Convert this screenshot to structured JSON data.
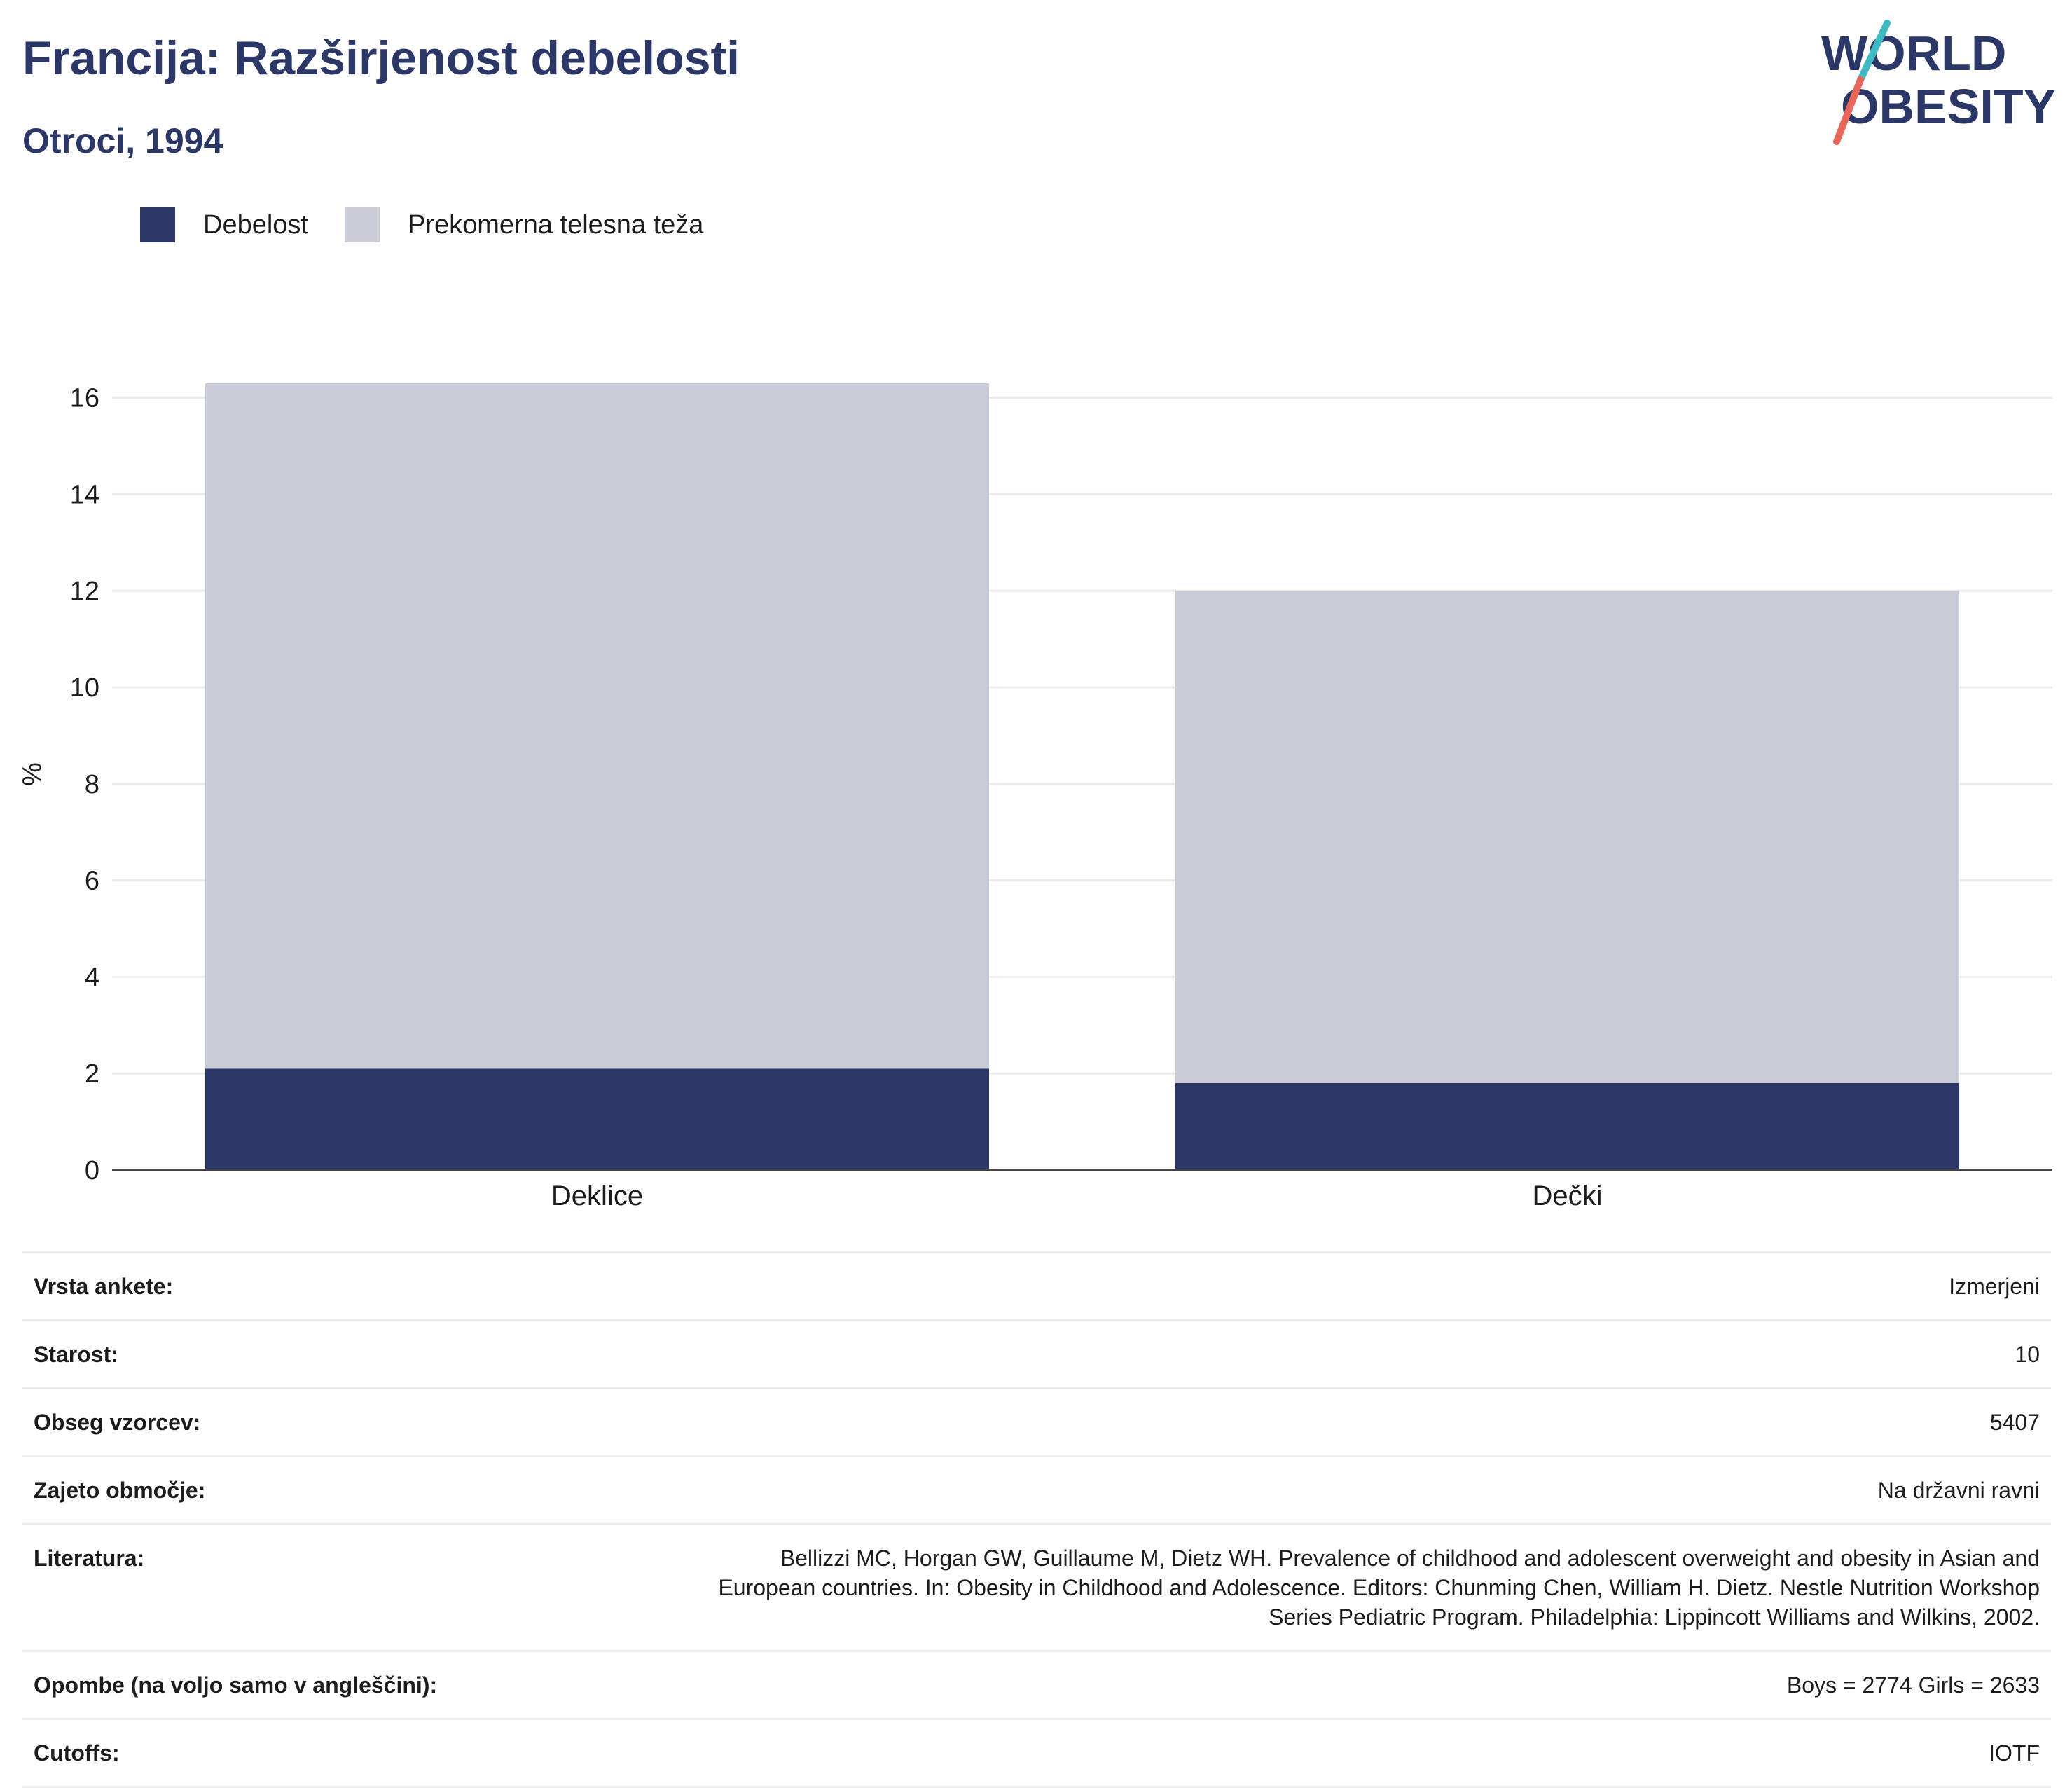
{
  "header": {
    "title": "Francija: Razširjenost debelosti",
    "subtitle": "Otroci, 1994",
    "logo_line1": "WORLD",
    "logo_line2": "OBESITY"
  },
  "legend": [
    {
      "label": "Debelost",
      "color": "#2b3766"
    },
    {
      "label": "Prekomerna telesna teža",
      "color": "#c9cbd6"
    }
  ],
  "chart_data": {
    "type": "bar",
    "stacked": true,
    "categories": [
      "Deklice",
      "Dečki"
    ],
    "series": [
      {
        "name": "Debelost",
        "color": "#2b3766",
        "values": [
          2.1,
          1.8
        ]
      },
      {
        "name": "Prekomerna telesna teža",
        "color": "#c9cbd6",
        "values": [
          14.2,
          10.2
        ]
      }
    ],
    "ylabel": "%",
    "ylim": [
      0,
      16.4
    ],
    "yticks": [
      0,
      2,
      4,
      6,
      8,
      10,
      12,
      14,
      16
    ],
    "grid": true,
    "legend_position": "top-left"
  },
  "details": [
    {
      "key": "Vrsta ankete:",
      "value": "Izmerjeni"
    },
    {
      "key": "Starost:",
      "value": "10"
    },
    {
      "key": "Obseg vzorcev:",
      "value": "5407"
    },
    {
      "key": "Zajeto območje:",
      "value": "Na državni ravni"
    },
    {
      "key": "Literatura:",
      "value": "Bellizzi MC, Horgan GW, Guillaume M, Dietz WH. Prevalence of childhood and adolescent overweight and obesity in Asian and European countries. In: Obesity in Childhood and Adolescence. Editors: Chunming Chen, William H. Dietz. Nestle Nutrition Workshop Series Pediatric Program. Philadelphia: Lippincott Williams and Wilkins, 2002."
    },
    {
      "key": "Opombe (na voljo samo v angleščini):",
      "value": "Boys = 2774 Girls = 2633"
    },
    {
      "key": "Cutoffs:",
      "value": "IOTF"
    }
  ]
}
